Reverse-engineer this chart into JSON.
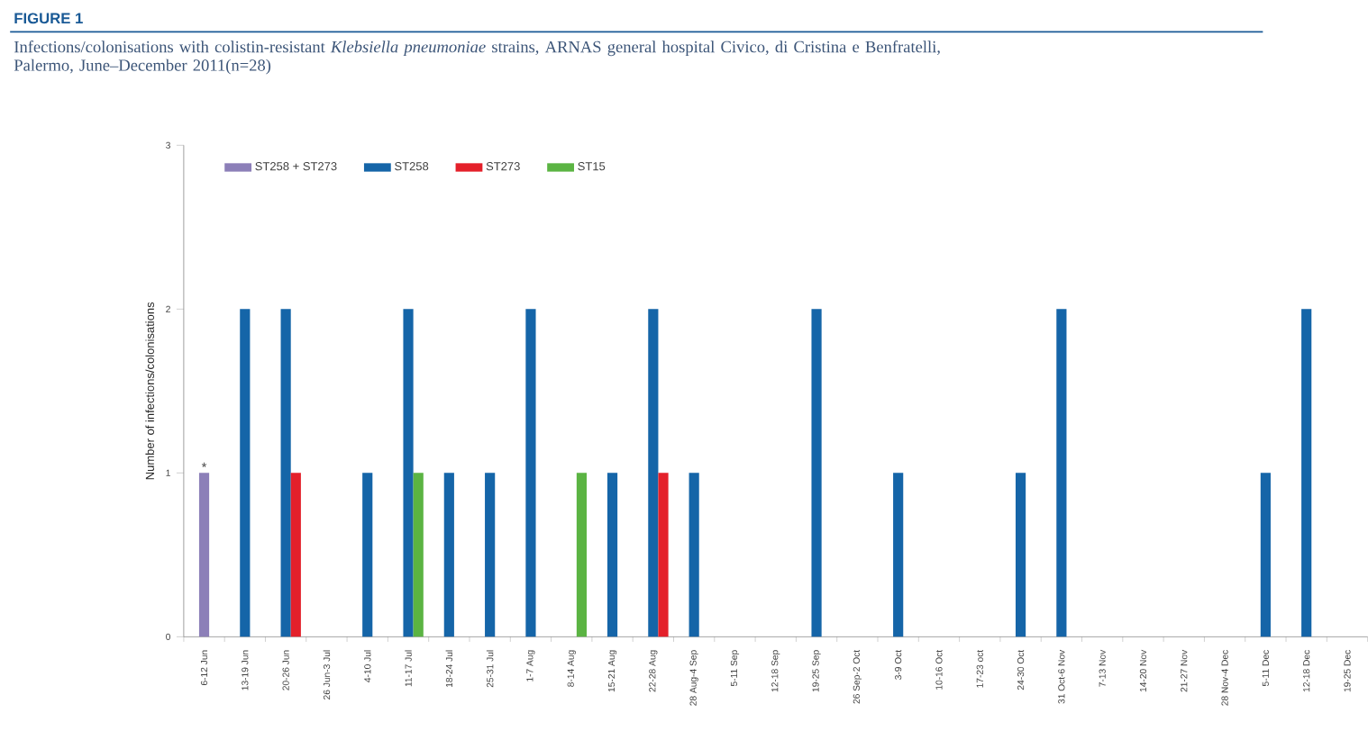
{
  "chart_data": {
    "type": "bar",
    "title": "FIGURE 1",
    "subtitle": "Infections/colonisations with colistin-resistant *Klebsiella pneumoniae* strains, ARNAS general hospital Civico, di Cristina e Benfratelli, Palermo, June–December 2011(n=28)",
    "ylabel": "Number of infections/colonisations",
    "categories": [
      "6-12 Jun",
      "13-19 Jun",
      "20-26 Jun",
      "26 Jun-3 Jul",
      "4-10 Jul",
      "11-17 Jul",
      "18-24 Jul",
      "25-31 Jul",
      "1-7 Aug",
      "8-14 Aug",
      "15-21 Aug",
      "22-28 Aug",
      "28 Aug-4 Sep",
      "5-11 Sep",
      "12-18 Sep",
      "19-25 Sep",
      "26 Sep-2 Oct",
      "3-9 Oct",
      "10-16 Oct",
      "17-23 oct",
      "24-30 Oct",
      "31 Oct-6 Nov",
      "7-13 Nov",
      "14-20 Nov",
      "21-27 Nov",
      "28 Nov-4 Dec",
      "5-11 Dec",
      "12-18 Dec",
      "19-25 Dec"
    ],
    "series": [
      {
        "name": "ST258 + ST273",
        "color": "#8c7fb8",
        "values": [
          1,
          null,
          null,
          null,
          null,
          null,
          null,
          null,
          null,
          null,
          null,
          null,
          null,
          null,
          null,
          null,
          null,
          null,
          null,
          null,
          null,
          null,
          null,
          null,
          null,
          null,
          null,
          null,
          null
        ]
      },
      {
        "name": "ST258",
        "color": "#1565a8",
        "values": [
          null,
          2,
          2,
          null,
          1,
          2,
          1,
          1,
          2,
          null,
          1,
          2,
          1,
          null,
          null,
          2,
          null,
          1,
          null,
          null,
          1,
          2,
          null,
          null,
          null,
          null,
          1,
          2,
          null
        ]
      },
      {
        "name": "ST273",
        "color": "#e4202a",
        "values": [
          null,
          null,
          1,
          null,
          null,
          null,
          null,
          null,
          null,
          null,
          null,
          1,
          null,
          null,
          null,
          null,
          null,
          null,
          null,
          null,
          null,
          null,
          null,
          null,
          null,
          null,
          null,
          null,
          null
        ]
      },
      {
        "name": "ST15",
        "color": "#5bb443",
        "values": [
          null,
          null,
          null,
          null,
          null,
          1,
          null,
          null,
          null,
          1,
          null,
          null,
          null,
          null,
          null,
          null,
          null,
          null,
          null,
          null,
          null,
          null,
          null,
          null,
          null,
          null,
          null,
          null,
          null
        ]
      }
    ],
    "ylim": [
      0,
      3
    ],
    "yticks": [
      0,
      1,
      2,
      3
    ],
    "legend": "top",
    "annotations": [
      {
        "text": "*",
        "x": "6-12 Jun",
        "y": 1
      }
    ]
  }
}
